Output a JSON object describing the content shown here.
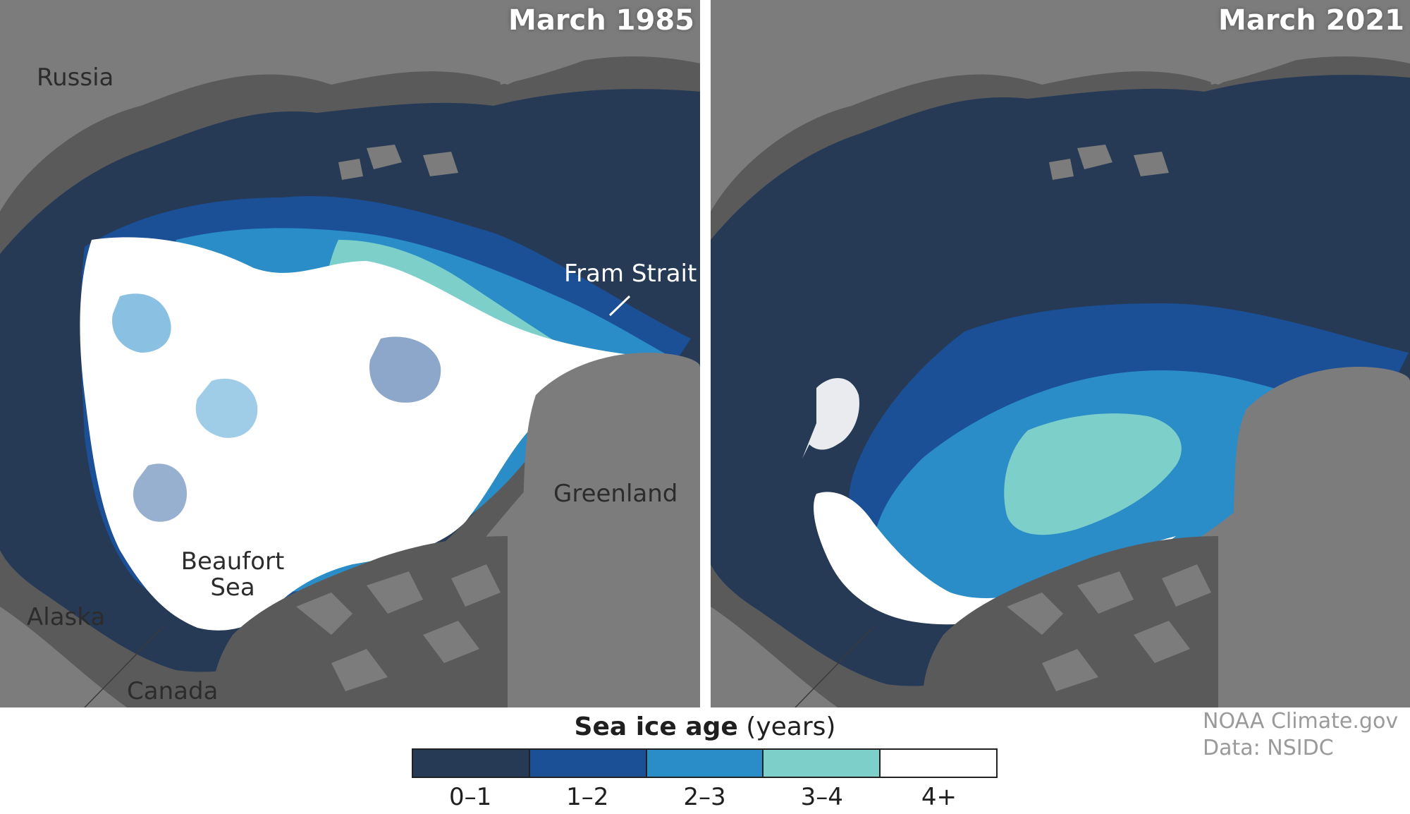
{
  "panels": [
    {
      "title": "March 1985",
      "labels": {
        "russia": "Russia",
        "alaska": "Alaska",
        "canada": "Canada",
        "greenland": "Greenland",
        "fram_strait": "Fram Strait",
        "beaufort_sea": "Beaufort Sea"
      }
    },
    {
      "title": "March 2021"
    }
  ],
  "legend": {
    "title_bold": "Sea ice age",
    "title_unit": "(years)",
    "categories": [
      {
        "label": "0–1",
        "color": "#263a55"
      },
      {
        "label": "1–2",
        "color": "#1b4f96"
      },
      {
        "label": "2–3",
        "color": "#2a8dc8"
      },
      {
        "label": "3–4",
        "color": "#7dcfc9"
      },
      {
        "label": "4+",
        "color": "#ffffff"
      }
    ]
  },
  "credits": {
    "line1": "NOAA Climate.gov",
    "line2": "Data: NSIDC"
  },
  "colors": {
    "land": "#7c7c7c",
    "coast": "#5c5c5c",
    "ocean_ice_0_1": "#263a55"
  }
}
